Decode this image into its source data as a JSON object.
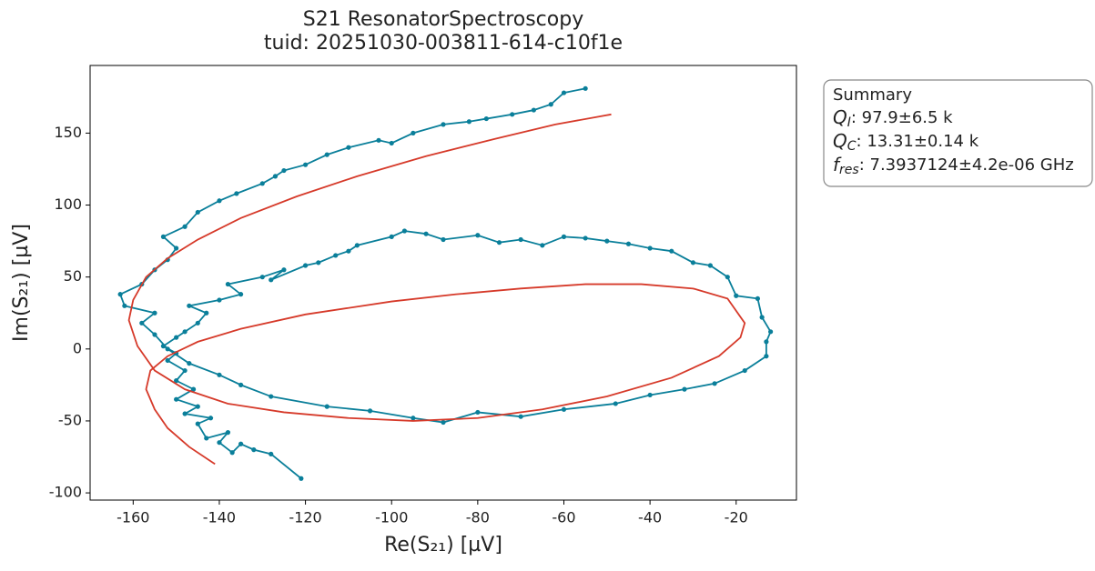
{
  "chart_data": {
    "type": "scatter",
    "title": "S21 ResonatorSpectroscopy",
    "subtitle": "tuid: 20251030-003811-614-c10f1e",
    "x_label": "Re(S₂₁) [µV]",
    "y_label": "Im(S₂₁) [µV]",
    "xlim": [
      -170,
      -6
    ],
    "ylim": [
      -105,
      197
    ],
    "xticks": [
      -160,
      -140,
      -120,
      -100,
      -80,
      -60,
      -40,
      -20
    ],
    "yticks": [
      -100,
      -50,
      0,
      50,
      100,
      150
    ],
    "annotation": {
      "title": "Summary",
      "lines": [
        {
          "symbol": "Q",
          "sub": "I",
          "text": ": 97.9±6.5 k"
        },
        {
          "symbol": "Q",
          "sub": "C",
          "text": ": 13.31±0.14 k"
        },
        {
          "symbol": "f",
          "sub": "res",
          "text": ": 7.3937124±4.2e-06 GHz"
        }
      ]
    },
    "series": [
      {
        "color": "#0a7f9a",
        "markers": true,
        "x": [
          -121,
          -128,
          -132,
          -135,
          -137,
          -140,
          -138,
          -143,
          -145,
          -142,
          -148,
          -145,
          -150,
          -146,
          -150,
          -148,
          -152,
          -150,
          -153,
          -150,
          -148,
          -145,
          -143,
          -147,
          -140,
          -135,
          -138,
          -130,
          -125,
          -128,
          -120,
          -117,
          -113,
          -110,
          -108,
          -100,
          -97,
          -92,
          -88,
          -80,
          -75,
          -70,
          -65,
          -60,
          -55,
          -50,
          -45,
          -40,
          -35,
          -30,
          -26,
          -22,
          -20,
          -15,
          -14,
          -12,
          -13,
          -13,
          -18,
          -25,
          -32,
          -40,
          -48,
          -60,
          -70,
          -80,
          -88,
          -95,
          -105,
          -115,
          -128,
          -135,
          -140,
          -147,
          -152,
          -155,
          -158,
          -155,
          -162,
          -163,
          -158,
          -155,
          -152,
          -150,
          -153,
          -148,
          -145,
          -140,
          -136,
          -130,
          -127,
          -125,
          -120,
          -115,
          -110,
          -103,
          -100,
          -95,
          -88,
          -82,
          -78,
          -72,
          -67,
          -63,
          -60,
          -55
        ],
        "y": [
          -90,
          -73,
          -70,
          -66,
          -72,
          -65,
          -58,
          -62,
          -52,
          -48,
          -45,
          -40,
          -35,
          -28,
          -22,
          -15,
          -8,
          -3,
          2,
          8,
          12,
          18,
          25,
          30,
          34,
          38,
          45,
          50,
          55,
          48,
          58,
          60,
          65,
          68,
          72,
          78,
          82,
          80,
          76,
          79,
          74,
          76,
          72,
          78,
          77,
          75,
          73,
          70,
          68,
          60,
          58,
          50,
          37,
          35,
          22,
          12,
          5,
          -5,
          -15,
          -24,
          -28,
          -32,
          -38,
          -42,
          -47,
          -44,
          -51,
          -48,
          -43,
          -40,
          -33,
          -25,
          -18,
          -10,
          0,
          10,
          18,
          25,
          30,
          38,
          45,
          55,
          62,
          70,
          78,
          85,
          95,
          103,
          108,
          115,
          120,
          124,
          128,
          135,
          140,
          145,
          143,
          150,
          156,
          158,
          160,
          163,
          166,
          170,
          178,
          181
        ]
      },
      {
        "color": "#d63a2a",
        "markers": false,
        "x": [
          -141,
          -147,
          -152,
          -155,
          -157,
          -156,
          -152,
          -145,
          -135,
          -120,
          -100,
          -85,
          -70,
          -55,
          -42,
          -30,
          -22,
          -18,
          -19,
          -24,
          -35,
          -50,
          -65,
          -80,
          -95,
          -110,
          -125,
          -138,
          -148,
          -155,
          -159,
          -161,
          -160,
          -157,
          -152,
          -145,
          -135,
          -122,
          -108,
          -92,
          -76,
          -62,
          -49
        ],
        "y": [
          -80,
          -68,
          -55,
          -42,
          -28,
          -15,
          -5,
          5,
          14,
          24,
          33,
          38,
          42,
          45,
          45,
          42,
          35,
          18,
          8,
          -5,
          -20,
          -33,
          -42,
          -48,
          -50,
          -48,
          -44,
          -38,
          -28,
          -15,
          2,
          20,
          34,
          50,
          63,
          76,
          91,
          106,
          120,
          134,
          146,
          156,
          163
        ]
      }
    ]
  }
}
